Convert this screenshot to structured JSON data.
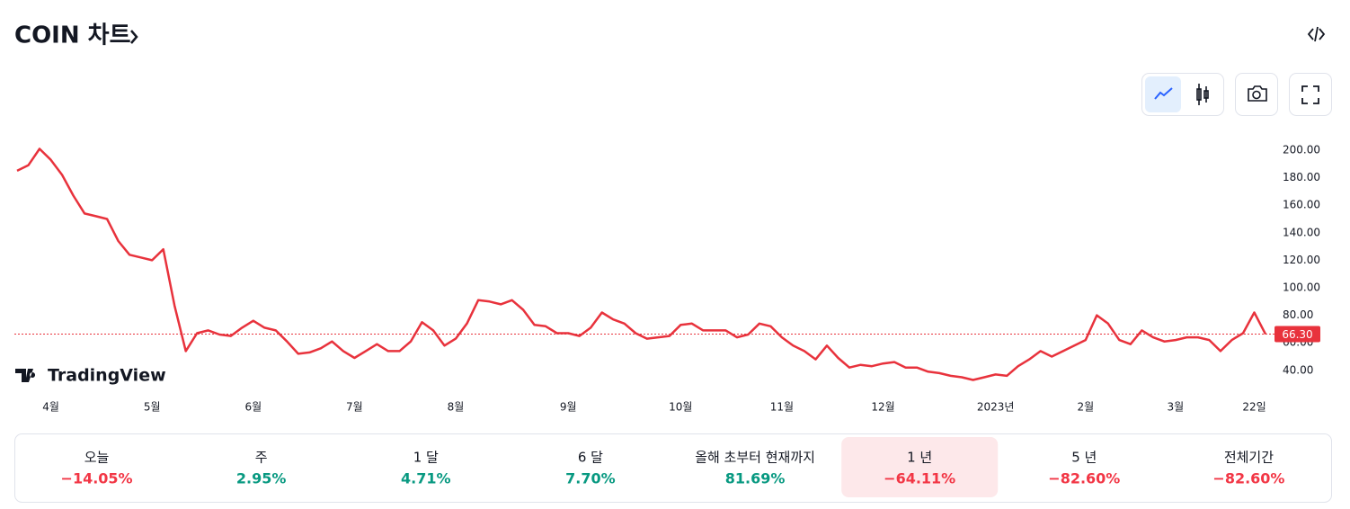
{
  "header": {
    "title": "COIN 차트"
  },
  "chart_data": {
    "type": "line",
    "categories": [
      null,
      null,
      null,
      "4월",
      null,
      null,
      null,
      null,
      null,
      null,
      null,
      null,
      "5월",
      null,
      null,
      null,
      null,
      null,
      null,
      null,
      null,
      "6월",
      null,
      null,
      null,
      null,
      null,
      null,
      null,
      null,
      "7월",
      null,
      null,
      null,
      null,
      null,
      null,
      null,
      null,
      "8월",
      null,
      null,
      null,
      null,
      null,
      null,
      null,
      null,
      null,
      "9월",
      null,
      null,
      null,
      null,
      null,
      null,
      null,
      null,
      null,
      "10월",
      null,
      null,
      null,
      null,
      null,
      null,
      null,
      null,
      "11월",
      null,
      null,
      null,
      null,
      null,
      null,
      null,
      null,
      "12월",
      null,
      null,
      null,
      null,
      null,
      null,
      null,
      null,
      null,
      "2023년",
      null,
      null,
      null,
      null,
      null,
      null,
      null,
      "2월",
      null,
      null,
      null,
      null,
      null,
      null,
      null,
      "3월",
      null,
      null,
      null,
      null,
      null,
      null,
      "22일",
      null
    ],
    "series": [
      {
        "name": "COIN",
        "color": "#e8323c",
        "values": [
          185,
          189,
          201,
          193,
          182,
          167,
          154,
          152,
          150,
          134,
          124,
          122,
          120,
          128,
          87,
          54,
          67,
          69,
          66,
          65,
          71,
          76,
          71,
          69,
          61,
          52,
          53,
          56,
          61,
          54,
          49,
          54,
          59,
          54,
          54,
          61,
          75,
          69,
          58,
          63,
          74,
          91,
          90,
          88,
          91,
          84,
          73,
          72,
          67,
          67,
          65,
          71,
          82,
          77,
          74,
          67,
          63,
          64,
          65,
          73,
          74,
          69,
          69,
          69,
          64,
          66,
          74,
          72,
          64,
          58,
          54,
          48,
          58,
          49,
          42,
          44,
          43,
          45,
          46,
          42,
          42,
          39,
          38,
          36,
          35,
          33,
          35,
          37,
          36,
          43,
          48,
          54,
          50,
          54,
          58,
          62,
          80,
          74,
          62,
          59,
          69,
          64,
          61,
          62,
          64,
          64,
          62,
          54,
          62,
          67,
          82,
          66.3
        ]
      }
    ],
    "last_value": 66.3,
    "last_value_label": "66.30",
    "ylim": [
      30,
      210
    ],
    "yticks": [
      {
        "value": 40,
        "label": "40.00"
      },
      {
        "value": 60,
        "label": "60.00"
      },
      {
        "value": 80,
        "label": "80.00"
      },
      {
        "value": 100,
        "label": "100.00"
      },
      {
        "value": 120,
        "label": "120.00"
      },
      {
        "value": 140,
        "label": "140.00"
      },
      {
        "value": 160,
        "label": "160.00"
      },
      {
        "value": 180,
        "label": "180.00"
      },
      {
        "value": 200,
        "label": "200.00"
      }
    ],
    "grid": false,
    "brand": "TradingView"
  },
  "periods": [
    {
      "label": "오늘",
      "value": "−14.05%"
    },
    {
      "label": "주",
      "value": "2.95%"
    },
    {
      "label": "1 달",
      "value": "4.71%"
    },
    {
      "label": "6 달",
      "value": "7.70%"
    },
    {
      "label": "올해 초부터 현재까지",
      "value": "81.69%"
    },
    {
      "label": "1 년",
      "value": "−64.11%",
      "selected": true
    },
    {
      "label": "5 년",
      "value": "−82.60%"
    },
    {
      "label": "전체기간",
      "value": "−82.60%"
    }
  ]
}
